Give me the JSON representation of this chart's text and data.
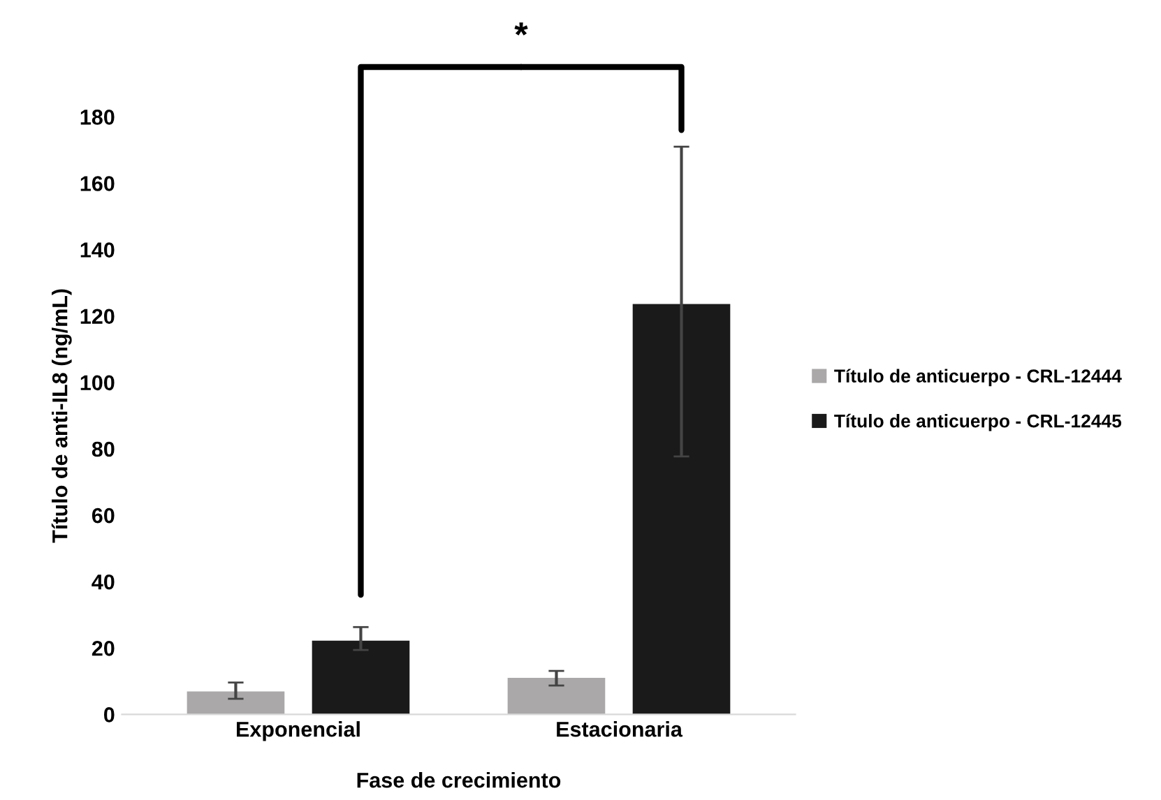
{
  "chart_data": {
    "type": "bar",
    "xlabel": "Fase de crecimiento",
    "ylabel": "Título de anti-IL8 (ng/mL)",
    "categories": [
      "Exponencial",
      "Estacionaria"
    ],
    "series": [
      {
        "name": "Título de anticuerpo - CRL-12444",
        "color": "#aaa8a8",
        "values": [
          6.9,
          11.0
        ],
        "errors": [
          [
            4.7,
            9.6
          ],
          [
            8.7,
            13.1
          ]
        ]
      },
      {
        "name": "Título de anticuerpo - CRL-12445",
        "color": "#1a1a1a",
        "values": [
          22.2,
          123.6
        ],
        "errors": [
          [
            19.4,
            26.3
          ],
          [
            77.7,
            171
          ]
        ]
      }
    ],
    "ylim": [
      0,
      180
    ],
    "yticks": [
      0,
      20,
      40,
      60,
      80,
      100,
      120,
      140,
      160,
      180
    ],
    "annotations": [
      "*"
    ],
    "legend": "right",
    "grid": false
  }
}
